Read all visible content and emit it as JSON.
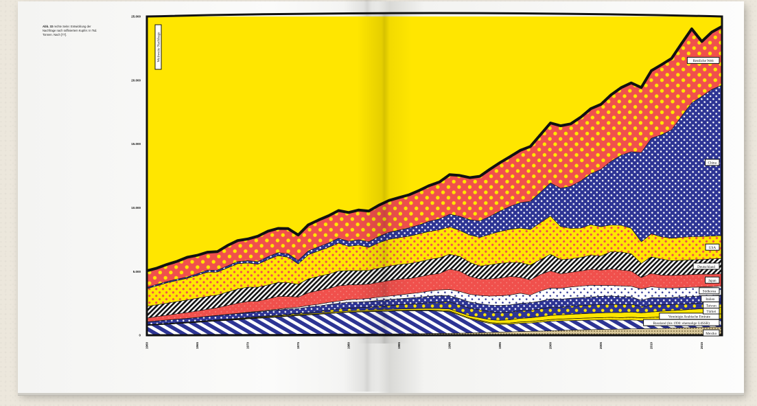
{
  "caption": {
    "label": "Abb. 33",
    "text": "rechte Seite: Entwicklung der Nachfrage nach raffiniertem Kupfer. In Tsd. Tonnen. Nach [77]."
  },
  "chart_data": {
    "type": "area",
    "stacked": true,
    "x": [
      1960,
      1961,
      1962,
      1963,
      1964,
      1965,
      1966,
      1967,
      1968,
      1969,
      1970,
      1971,
      1972,
      1973,
      1974,
      1975,
      1976,
      1977,
      1978,
      1979,
      1980,
      1981,
      1982,
      1983,
      1984,
      1985,
      1986,
      1987,
      1988,
      1989,
      1990,
      1991,
      1992,
      1993,
      1994,
      1995,
      1996,
      1997,
      1998,
      1999,
      2000,
      2001,
      2002,
      2003,
      2004,
      2005,
      2006,
      2007,
      2008,
      2009,
      2010,
      2011,
      2012,
      2013,
      2014,
      2015,
      2016,
      2017
    ],
    "xticks": [
      "1960",
      "1965",
      "1970",
      "1975",
      "1980",
      "1985",
      "1990",
      "1995",
      "2000",
      "2005",
      "2010",
      "2015"
    ],
    "xtick_values": [
      1960,
      1965,
      1970,
      1975,
      1980,
      1985,
      1990,
      1995,
      2000,
      2005,
      2010,
      2015
    ],
    "yticks": [
      "0",
      "5.000",
      "10.000",
      "15.000",
      "20.000",
      "25.000"
    ],
    "ytick_values": [
      0,
      5000,
      10000,
      15000,
      20000,
      25000
    ],
    "ylim": [
      0,
      25000
    ],
    "xlim": [
      1960,
      2017
    ],
    "colors": {
      "yellow": "#ffe600",
      "red": "#f0504c",
      "blue": "#2d3494",
      "black": "#111111",
      "white": "#ffffff",
      "olive": "#b5a070"
    },
    "series": [
      {
        "name": "Mexiko",
        "fill": "olive-dots",
        "values": [
          60,
          60,
          60,
          60,
          60,
          60,
          70,
          70,
          70,
          70,
          80,
          80,
          80,
          80,
          80,
          90,
          90,
          90,
          100,
          100,
          100,
          100,
          100,
          110,
          110,
          110,
          120,
          120,
          130,
          140,
          150,
          160,
          180,
          200,
          220,
          250,
          270,
          290,
          310,
          330,
          350,
          380,
          400,
          420,
          440,
          450,
          460,
          480,
          500,
          500,
          520,
          540,
          560,
          580,
          600,
          620,
          640,
          660
        ]
      },
      {
        "name": "Russland (bis 1990: ehemalige UdSSR)",
        "fill": "blue-stripes",
        "values": [
          700,
          750,
          800,
          850,
          900,
          950,
          1000,
          1050,
          1100,
          1150,
          1200,
          1250,
          1300,
          1350,
          1400,
          1450,
          1500,
          1550,
          1600,
          1650,
          1700,
          1720,
          1740,
          1760,
          1780,
          1800,
          1800,
          1800,
          1800,
          1750,
          1700,
          1400,
          1100,
          900,
          700,
          600,
          600,
          650,
          650,
          700,
          750,
          750,
          750,
          750,
          750,
          750,
          750,
          700,
          700,
          650,
          650,
          650,
          650,
          650,
          650,
          650,
          650,
          650
        ]
      },
      {
        "name": "Vereinigte Arabische Emirate",
        "fill": "yellow-dots",
        "values": [
          30,
          30,
          30,
          30,
          30,
          30,
          30,
          30,
          30,
          30,
          30,
          30,
          30,
          30,
          30,
          30,
          30,
          30,
          30,
          30,
          30,
          30,
          30,
          30,
          30,
          40,
          40,
          40,
          40,
          50,
          50,
          60,
          60,
          70,
          70,
          80,
          90,
          100,
          110,
          120,
          130,
          140,
          150,
          160,
          170,
          180,
          190,
          200,
          210,
          220,
          230,
          250,
          270,
          290,
          310,
          330,
          350,
          370
        ]
      },
      {
        "name": "Türkei",
        "fill": "white",
        "values": [
          30,
          30,
          30,
          30,
          30,
          40,
          40,
          40,
          40,
          50,
          50,
          50,
          60,
          60,
          60,
          70,
          70,
          70,
          80,
          80,
          90,
          90,
          90,
          100,
          100,
          110,
          120,
          130,
          140,
          150,
          160,
          170,
          180,
          200,
          220,
          240,
          260,
          280,
          300,
          310,
          320,
          330,
          340,
          350,
          360,
          370,
          380,
          400,
          410,
          380,
          420,
          440,
          450,
          460,
          470,
          480,
          490,
          500
        ]
      },
      {
        "name": "Taiwan",
        "fill": "blue-yellow-dots",
        "values": [
          10,
          10,
          10,
          10,
          10,
          10,
          15,
          15,
          20,
          20,
          30,
          40,
          50,
          60,
          70,
          80,
          100,
          120,
          150,
          180,
          200,
          220,
          250,
          280,
          300,
          330,
          360,
          400,
          450,
          500,
          550,
          580,
          600,
          620,
          640,
          620,
          600,
          600,
          580,
          600,
          650,
          600,
          650,
          650,
          650,
          650,
          650,
          620,
          600,
          500,
          550,
          500,
          480,
          470,
          460,
          450,
          430,
          420
        ]
      },
      {
        "name": "Italien",
        "fill": "blue-white-dots",
        "values": [
          220,
          240,
          260,
          280,
          290,
          300,
          320,
          340,
          360,
          370,
          380,
          380,
          390,
          400,
          420,
          380,
          420,
          430,
          450,
          460,
          470,
          450,
          440,
          450,
          470,
          470,
          480,
          490,
          500,
          520,
          480,
          500,
          490,
          480,
          520,
          550,
          560,
          580,
          600,
          610,
          650,
          620,
          610,
          620,
          630,
          650,
          650,
          620,
          600,
          480,
          580,
          560,
          550,
          560,
          550,
          560,
          550,
          560
        ]
      },
      {
        "name": "Südkorea",
        "fill": "white-blue-dots",
        "values": [
          5,
          5,
          5,
          5,
          5,
          10,
          10,
          15,
          20,
          25,
          30,
          40,
          50,
          60,
          80,
          100,
          120,
          140,
          160,
          180,
          200,
          220,
          240,
          260,
          280,
          300,
          330,
          360,
          400,
          440,
          500,
          560,
          600,
          650,
          700,
          750,
          780,
          800,
          600,
          800,
          850,
          860,
          880,
          900,
          920,
          860,
          820,
          850,
          820,
          900,
          850,
          780,
          740,
          720,
          720,
          700,
          700,
          690
        ]
      },
      {
        "name": "Japan",
        "fill": "red-dots",
        "values": [
          300,
          340,
          380,
          420,
          460,
          500,
          550,
          600,
          700,
          800,
          850,
          800,
          900,
          1000,
          900,
          800,
          1000,
          1080,
          1100,
          1200,
          1160,
          1140,
          1120,
          1160,
          1220,
          1240,
          1200,
          1240,
          1280,
          1300,
          1600,
          1600,
          1400,
          1300,
          1350,
          1400,
          1450,
          1250,
          1200,
          1300,
          1350,
          1150,
          1150,
          1200,
          1250,
          1200,
          1300,
          1250,
          1200,
          900,
          1050,
          1000,
          1000,
          1000,
          1000,
          1000,
          980,
          970
        ]
      },
      {
        "name": "Deutschland",
        "fill": "black-stripes",
        "values": [
          900,
          920,
          940,
          960,
          980,
          1000,
          1010,
          1000,
          1050,
          1100,
          1120,
          1100,
          1080,
          1100,
          1080,
          1000,
          1080,
          1100,
          1120,
          1150,
          1120,
          1100,
          1080,
          1100,
          1130,
          1150,
          1170,
          1180,
          1200,
          1220,
          1150,
          1150,
          1100,
          1000,
          1100,
          1150,
          1100,
          1150,
          1150,
          1150,
          1300,
          1100,
          1050,
          1050,
          1100,
          1100,
          1350,
          1400,
          1350,
          1100,
          1300,
          1250,
          1150,
          1150,
          1150,
          1150,
          1200,
          1200
        ]
      },
      {
        "name": "USA",
        "fill": "yellow-red-dots",
        "values": [
          1400,
          1500,
          1600,
          1650,
          1700,
          1800,
          1900,
          1800,
          1900,
          2000,
          1900,
          1800,
          2000,
          2100,
          2000,
          1600,
          1900,
          2000,
          2100,
          2200,
          1900,
          2000,
          1800,
          2000,
          2100,
          2100,
          2150,
          2200,
          2200,
          2200,
          2150,
          2050,
          2150,
          2250,
          2400,
          2500,
          2600,
          2700,
          2800,
          2900,
          3000,
          2600,
          2400,
          2300,
          2400,
          2300,
          2100,
          2100,
          2000,
          1700,
          1800,
          1750,
          1760,
          1800,
          1820,
          1800,
          1790,
          1800
        ]
      },
      {
        "name": "China",
        "fill": "blue-white-dots",
        "values": [
          100,
          100,
          100,
          100,
          100,
          120,
          150,
          150,
          150,
          160,
          180,
          200,
          220,
          240,
          260,
          280,
          300,
          320,
          350,
          380,
          400,
          420,
          450,
          500,
          550,
          600,
          650,
          700,
          800,
          850,
          1000,
          1100,
          1200,
          1300,
          1400,
          1600,
          1800,
          2000,
          2200,
          2400,
          2600,
          3000,
          3300,
          3700,
          4000,
          4500,
          5000,
          5500,
          6000,
          7000,
          7500,
          8000,
          8500,
          9500,
          10500,
          11000,
          11500,
          11800
        ]
      },
      {
        "name": "Restliche Welt",
        "fill": "red-yellow-dots",
        "values": [
          1300,
          1280,
          1340,
          1400,
          1550,
          1450,
          1420,
          1450,
          1600,
          1650,
          1700,
          2000,
          2000,
          1900,
          1980,
          1980,
          2050,
          2100,
          2130,
          2170,
          2260,
          2330,
          2400,
          2450,
          2500,
          2550,
          2600,
          2700,
          2800,
          2900,
          3100,
          3200,
          3300,
          3500,
          3700,
          3800,
          3900,
          4100,
          4300,
          4500,
          4700,
          4900,
          4900,
          5000,
          5100,
          5100,
          5200,
          5300,
          5400,
          5100,
          5300,
          5500,
          5600,
          5700,
          5800,
          4300,
          4500,
          4600
        ]
      }
    ],
    "total_label": "Weltweite Nachfrage",
    "note": "Stacked area chart; the yellow field above the stack is the background."
  }
}
